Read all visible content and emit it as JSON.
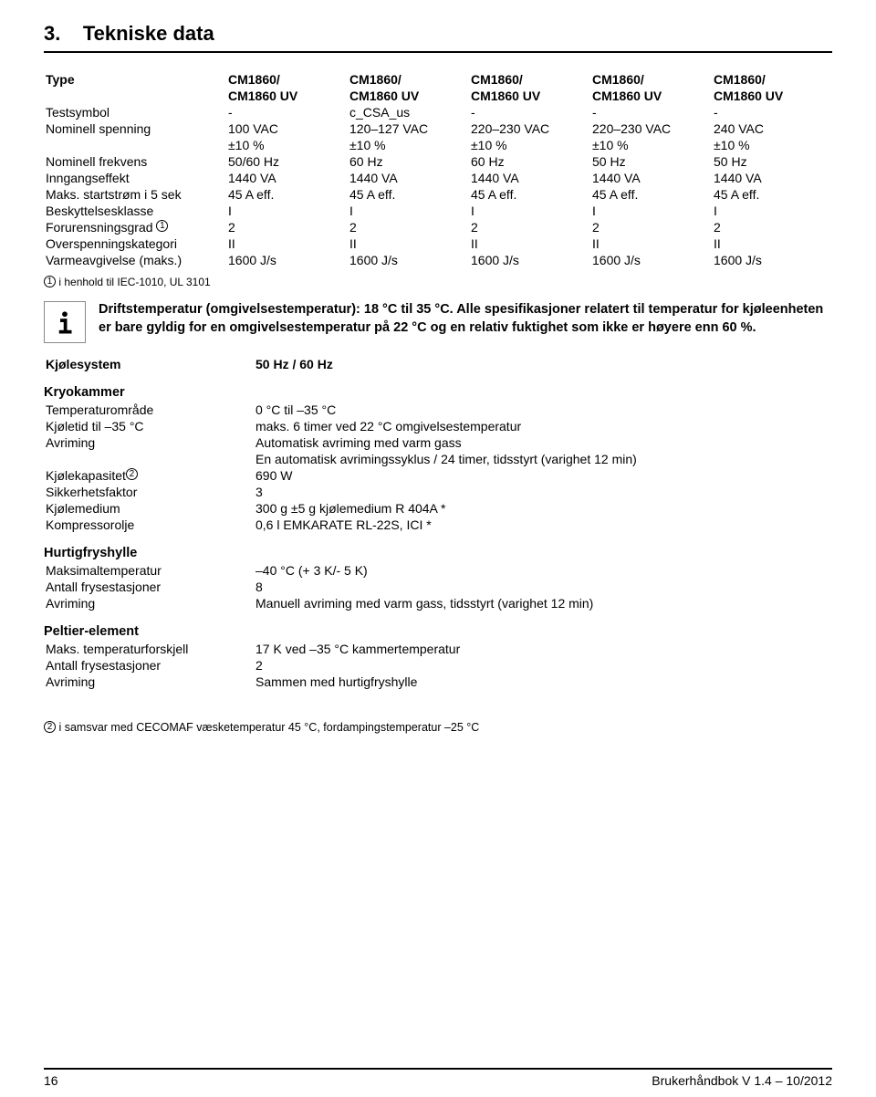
{
  "section": {
    "number": "3.",
    "title": "Tekniske data"
  },
  "spec_table": {
    "columns": [
      "Type",
      "CM1860/",
      "CM1860/",
      "CM1860/",
      "CM1860/",
      "CM1860/"
    ],
    "columns2": [
      "",
      "CM1860 UV",
      "CM1860 UV",
      "CM1860 UV",
      "CM1860 UV",
      "CM1860 UV"
    ],
    "rows": [
      {
        "label": "Testsymbol",
        "v": [
          "-",
          "c_CSA_us",
          "-",
          "-",
          "-"
        ]
      },
      {
        "label": "Nominell spenning",
        "v": [
          "100 VAC",
          "120–127 VAC",
          "220–230 VAC",
          "220–230 VAC",
          "240 VAC"
        ]
      },
      {
        "label": "",
        "v": [
          "±10 %",
          "±10 %",
          "±10 %",
          "±10 %",
          "±10 %"
        ]
      },
      {
        "label": "Nominell frekvens",
        "v": [
          "50/60 Hz",
          "60 Hz",
          "60 Hz",
          "50 Hz",
          "50 Hz"
        ]
      },
      {
        "label": "Inngangseffekt",
        "v": [
          "1440 VA",
          "1440 VA",
          "1440 VA",
          "1440 VA",
          "1440 VA"
        ]
      },
      {
        "label": "Maks. startstrøm i 5 sek",
        "v": [
          "45 A eff.",
          "45 A eff.",
          "45 A eff.",
          "45 A eff.",
          "45 A eff."
        ]
      },
      {
        "label": "Beskyttelsesklasse",
        "v": [
          "I",
          "I",
          "I",
          "I",
          "I"
        ]
      },
      {
        "label": "Forurensningsgrad ①",
        "v": [
          "2",
          "2",
          "2",
          "2",
          "2"
        ]
      },
      {
        "label": "Overspenningskategori",
        "v": [
          "II",
          "II",
          "II",
          "II",
          "II"
        ]
      },
      {
        "label": "Varmeavgivelse (maks.)",
        "v": [
          "1600 J/s",
          "1600 J/s",
          "1600 J/s",
          "1600 J/s",
          "1600 J/s"
        ]
      }
    ]
  },
  "footnote1": {
    "sym": "①",
    "text": "i henhold til IEC-1010, UL 3101"
  },
  "info": "Driftstemperatur (omgivelsestemperatur): 18 °C til 35 °C. Alle spesifikasjoner relatert til temperatur for kjøleenheten er bare gyldig for en omgivelsestemperatur på 22 °C og en relativ fuktighet som ikke er høyere enn 60 %.",
  "cooling": {
    "label": "Kjølesystem",
    "value": "50 Hz / 60 Hz"
  },
  "kryo": {
    "heading": "Kryokammer",
    "rows": [
      {
        "k": "Temperaturområde",
        "v": "0 °C til –35 °C"
      },
      {
        "k": "Kjøletid til –35 °C",
        "v": "maks. 6 timer ved 22 °C omgivelsestemperatur"
      },
      {
        "k": "Avriming",
        "v": "Automatisk avriming med varm gass"
      },
      {
        "k": "",
        "v": "En automatisk avrimingssyklus / 24 timer, tidsstyrt (varighet 12 min)"
      },
      {
        "k": "Kjølekapasitet②",
        "v": "690 W"
      },
      {
        "k": "Sikkerhetsfaktor",
        "v": "3"
      },
      {
        "k": "Kjølemedium",
        "v": "300 g ±5 g kjølemedium R 404A *"
      },
      {
        "k": "Kompressorolje",
        "v": "0,6 l EMKARATE RL-22S, ICI *"
      }
    ]
  },
  "hurtig": {
    "heading": "Hurtigfryshylle",
    "rows": [
      {
        "k": "Maksimaltemperatur",
        "v": "–40 °C (+ 3 K/- 5 K)"
      },
      {
        "k": "Antall frysestasjoner",
        "v": "8"
      },
      {
        "k": "Avriming",
        "v": "Manuell avriming med varm gass, tidsstyrt (varighet 12 min)"
      }
    ]
  },
  "peltier": {
    "heading": "Peltier-element",
    "rows": [
      {
        "k": "Maks. temperaturforskjell",
        "v": "17 K ved –35 °C kammertemperatur"
      },
      {
        "k": "Antall frysestasjoner",
        "v": "2"
      },
      {
        "k": "Avriming",
        "v": "Sammen med hurtigfryshylle"
      }
    ]
  },
  "footnote2": {
    "sym": "②",
    "text": "i samsvar med CECOMAF væsketemperatur 45 °C, fordampingstemperatur –25 °C"
  },
  "footer": {
    "page": "16",
    "right": "Brukerhåndbok V 1.4 – 10/2012"
  },
  "colors": {
    "rule": "#000000",
    "text": "#000000",
    "bg": "#ffffff",
    "icon_border": "#888888"
  }
}
